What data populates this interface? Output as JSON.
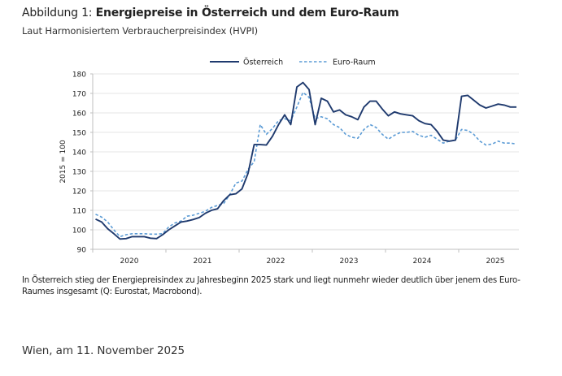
{
  "header": {
    "figure_label": "Abbildung 1: ",
    "title": "Energiepreise in Österreich und dem Euro-Raum",
    "subtitle": "Laut Harmonisiertem Verbraucherpreisindex (HVPI)"
  },
  "note": "In Österreich stieg der Energiepreisindex zu Jahresbeginn 2025 stark und liegt nunmehr wieder deutlich über jenem des Euro-Raumes insgesamt (Q: Eurostat, Macrobond).",
  "footer": "Wien, am 11. November 2025",
  "colors": {
    "oesterreich": "#1f3a6e",
    "euro_raum": "#5b9bd5",
    "grid": "#e6e6e6",
    "axis": "#bfbfbf"
  },
  "chart_data": {
    "type": "line",
    "title": "Energiepreise in Österreich und dem Euro-Raum",
    "xlabel": "",
    "ylabel": "2015 = 100",
    "ylim": [
      90,
      180
    ],
    "yticks": [
      90,
      100,
      110,
      120,
      130,
      140,
      150,
      160,
      170,
      180
    ],
    "year_labels": [
      "2020",
      "2021",
      "2022",
      "2023",
      "2024",
      "2025"
    ],
    "x_start": "2020-01",
    "frequency": "monthly",
    "grid": true,
    "legend_position": "top-center",
    "series": [
      {
        "name": "Österreich",
        "style": "solid",
        "values": [
          105.5,
          104,
          100.5,
          98,
          95.3,
          95.5,
          96.5,
          96.5,
          96.5,
          95.7,
          95.5,
          97.5,
          100,
          102,
          104,
          104.5,
          105.3,
          106.3,
          108.5,
          110,
          110.8,
          115,
          118,
          118.5,
          121,
          129,
          143.7,
          143.7,
          143.5,
          148,
          154,
          159,
          154,
          173.3,
          175.6,
          172,
          154,
          167.5,
          166,
          160.5,
          161.5,
          159,
          158,
          156.5,
          163,
          166,
          166,
          162,
          158.5,
          160.5,
          159.5,
          159,
          158.5,
          156,
          154.5,
          154,
          150.5,
          146,
          145.5,
          146,
          168.5,
          169,
          166.5,
          164,
          162.5,
          163.5,
          164.5,
          164,
          163,
          163
        ]
      },
      {
        "name": "Euro-Raum",
        "style": "dashed",
        "values": [
          108,
          106.5,
          104,
          100,
          96.5,
          97.5,
          98,
          98,
          98,
          97.8,
          97.8,
          98,
          101.5,
          103.5,
          104.5,
          107,
          107.5,
          108.5,
          109.5,
          111.5,
          112.5,
          113.5,
          118,
          124,
          125,
          131,
          135,
          154,
          149,
          152,
          156,
          157,
          156,
          163,
          170.5,
          168,
          157,
          158,
          157,
          154,
          152.5,
          149,
          147.5,
          147,
          151.5,
          154,
          152.5,
          149,
          146.5,
          148.5,
          150,
          150,
          150.5,
          148.5,
          147.5,
          148.5,
          146.5,
          144.5,
          145.5,
          146,
          151.5,
          151,
          149,
          145.5,
          143.5,
          144,
          145.5,
          144.5,
          144.5,
          144
        ]
      }
    ]
  }
}
